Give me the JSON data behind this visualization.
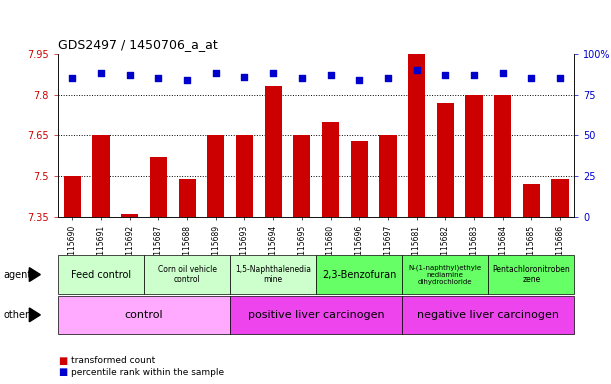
{
  "title": "GDS2497 / 1450706_a_at",
  "samples": [
    "GSM115690",
    "GSM115691",
    "GSM115692",
    "GSM115687",
    "GSM115688",
    "GSM115689",
    "GSM115693",
    "GSM115694",
    "GSM115695",
    "GSM115680",
    "GSM115696",
    "GSM115697",
    "GSM115681",
    "GSM115682",
    "GSM115683",
    "GSM115684",
    "GSM115685",
    "GSM115686"
  ],
  "transformed_counts": [
    7.5,
    7.65,
    7.36,
    7.57,
    7.49,
    7.65,
    7.65,
    7.83,
    7.65,
    7.7,
    7.63,
    7.65,
    7.95,
    7.77,
    7.8,
    7.8,
    7.47,
    7.49
  ],
  "percentile_ranks": [
    85,
    88,
    87,
    85,
    84,
    88,
    86,
    88,
    85,
    87,
    84,
    85,
    90,
    87,
    87,
    88,
    85,
    85
  ],
  "ymin": 7.35,
  "ymax": 7.95,
  "y2min": 0,
  "y2max": 100,
  "yticks": [
    7.35,
    7.5,
    7.65,
    7.8,
    7.95
  ],
  "y2ticks": [
    0,
    25,
    50,
    75,
    100
  ],
  "agent_groups": [
    {
      "label": "Feed control",
      "start": 0,
      "end": 3,
      "color": "#ccffcc",
      "fontsize": 7
    },
    {
      "label": "Corn oil vehicle\ncontrol",
      "start": 3,
      "end": 6,
      "color": "#ccffcc",
      "fontsize": 5.5
    },
    {
      "label": "1,5-Naphthalenedia\nmine",
      "start": 6,
      "end": 9,
      "color": "#ccffcc",
      "fontsize": 5.5
    },
    {
      "label": "2,3-Benzofuran",
      "start": 9,
      "end": 12,
      "color": "#66ff66",
      "fontsize": 7
    },
    {
      "label": "N-(1-naphthyl)ethyle\nnediamine\ndihydrochloride",
      "start": 12,
      "end": 15,
      "color": "#66ff66",
      "fontsize": 5
    },
    {
      "label": "Pentachloronitroben\nzene",
      "start": 15,
      "end": 18,
      "color": "#66ff66",
      "fontsize": 5.5
    }
  ],
  "other_groups": [
    {
      "label": "control",
      "start": 0,
      "end": 6,
      "color": "#ffaaff",
      "fontsize": 8
    },
    {
      "label": "positive liver carcinogen",
      "start": 6,
      "end": 12,
      "color": "#ee44ee",
      "fontsize": 8
    },
    {
      "label": "negative liver carcinogen",
      "start": 12,
      "end": 18,
      "color": "#ee44ee",
      "fontsize": 8
    }
  ],
  "bar_color": "#cc0000",
  "dot_color": "#0000cc",
  "bg_color": "#ffffff",
  "left_axis_color": "#cc0000",
  "right_axis_color": "#0000cc",
  "title_fontsize": 9,
  "ylabel_fontsize": 7,
  "xlabel_fontsize": 5.5
}
